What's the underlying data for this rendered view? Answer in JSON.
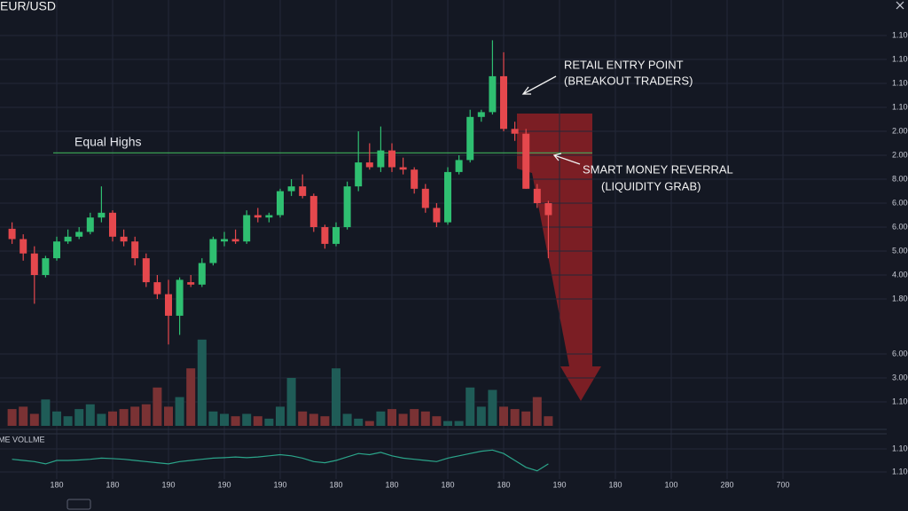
{
  "chart_data": {
    "type": "candlestick",
    "title": "EUR/USD",
    "x": [
      1,
      2,
      3,
      4,
      5,
      6,
      7,
      8,
      9,
      10,
      11,
      12,
      13,
      14,
      15,
      16,
      17,
      18,
      19,
      20,
      21,
      22,
      23,
      24,
      25,
      26,
      27,
      28,
      29,
      30,
      31,
      32,
      33,
      34,
      35,
      36,
      37,
      38,
      39,
      40,
      41,
      42,
      43,
      44,
      45,
      46,
      47,
      48,
      49
    ],
    "open": [
      3.93,
      3.5,
      2.9,
      2.0,
      2.7,
      3.4,
      3.6,
      3.8,
      4.4,
      4.6,
      3.6,
      3.4,
      2.7,
      1.7,
      1.2,
      0.3,
      1.7,
      1.6,
      2.5,
      3.4,
      3.5,
      3.4,
      4.5,
      4.4,
      4.5,
      5.5,
      5.7,
      5.3,
      4.0,
      3.3,
      4.0,
      5.7,
      6.7,
      6.5,
      7.2,
      6.5,
      6.4,
      5.6,
      4.8,
      4.2,
      6.3,
      6.8,
      8.6,
      8.8,
      10.3,
      8.1,
      7.9,
      5.6,
      5.0
    ],
    "high": [
      4.2,
      3.7,
      3.2,
      2.8,
      3.6,
      3.9,
      4.0,
      4.6,
      5.7,
      4.7,
      3.9,
      3.6,
      2.9,
      2.0,
      1.8,
      1.9,
      2.0,
      2.7,
      3.6,
      3.8,
      3.9,
      4.7,
      4.8,
      4.6,
      5.6,
      6.0,
      6.2,
      5.4,
      4.1,
      4.2,
      5.9,
      8.0,
      7.5,
      8.2,
      7.5,
      6.9,
      6.5,
      5.8,
      5.0,
      6.5,
      7.0,
      8.9,
      8.9,
      11.8,
      11.3,
      8.4,
      8.1,
      5.8,
      5.1
    ],
    "low": [
      3.3,
      2.6,
      0.8,
      1.9,
      2.6,
      3.3,
      3.5,
      3.7,
      4.2,
      3.4,
      3.2,
      2.4,
      1.5,
      1.0,
      -0.9,
      -0.5,
      1.5,
      1.5,
      2.4,
      3.2,
      3.3,
      3.3,
      4.2,
      4.2,
      4.4,
      5.3,
      5.2,
      3.8,
      3.1,
      3.2,
      3.9,
      5.5,
      6.4,
      6.3,
      6.3,
      6.2,
      5.4,
      4.6,
      4.0,
      4.1,
      6.2,
      6.7,
      8.4,
      8.7,
      8.0,
      7.6,
      5.6,
      4.8,
      2.7
    ],
    "close": [
      3.5,
      2.9,
      2.0,
      2.7,
      3.4,
      3.6,
      3.8,
      4.4,
      4.6,
      3.6,
      3.4,
      2.7,
      1.7,
      1.2,
      0.3,
      1.8,
      1.6,
      2.5,
      3.5,
      3.5,
      3.4,
      4.5,
      4.4,
      4.5,
      5.5,
      5.7,
      5.3,
      4.0,
      3.3,
      4.0,
      5.7,
      6.7,
      6.5,
      7.2,
      6.5,
      6.4,
      5.6,
      4.8,
      4.2,
      6.3,
      6.8,
      8.6,
      8.8,
      10.3,
      8.1,
      7.9,
      5.6,
      5.0,
      4.5
    ],
    "up_color": "#2fbf71",
    "down_color": "#e5484d",
    "xlim": [
      0,
      80
    ],
    "xticks": [
      {
        "value": 5,
        "label": "180"
      },
      {
        "value": 10,
        "label": "180"
      },
      {
        "value": 15,
        "label": "190"
      },
      {
        "value": 20,
        "label": "190"
      },
      {
        "value": 25,
        "label": "190"
      },
      {
        "value": 30,
        "label": "180"
      },
      {
        "value": 35,
        "label": "180"
      },
      {
        "value": 40,
        "label": "180"
      },
      {
        "value": 45,
        "label": "180"
      },
      {
        "value": 50,
        "label": "190"
      },
      {
        "value": 55,
        "label": "180"
      },
      {
        "value": 60,
        "label": "100"
      },
      {
        "value": 65,
        "label": "280"
      },
      {
        "value": 70,
        "label": "700"
      }
    ],
    "ylim": [
      -1,
      13
    ],
    "yticks": [
      {
        "value": 12,
        "label": "1.100"
      },
      {
        "value": 11,
        "label": "1.100"
      },
      {
        "value": 10,
        "label": "1.100"
      },
      {
        "value": 9,
        "label": "1.100"
      },
      {
        "value": 8,
        "label": "2.000"
      },
      {
        "value": 7,
        "label": "2.000"
      },
      {
        "value": 6,
        "label": "8.000"
      },
      {
        "value": 5,
        "label": "6.000"
      },
      {
        "value": 4,
        "label": "6.000"
      },
      {
        "value": 3,
        "label": "5.000"
      },
      {
        "value": 2,
        "label": "4.000"
      },
      {
        "value": 1,
        "label": "1.800"
      }
    ],
    "grid": true,
    "level": {
      "label": "Equal Highs",
      "value": 7.1,
      "color": "#3fae5a"
    },
    "annotations": [
      {
        "lines": [
          "RETAIL ENTRY POINT",
          "(BREAKOUT TRADERS)"
        ]
      },
      {
        "lines": [
          "SMART MONEY REVERRAL",
          "(LIQUIDITY GRAB)"
        ]
      }
    ],
    "volume": {
      "values": [
        0.7,
        0.8,
        0.5,
        1.1,
        0.6,
        0.4,
        0.7,
        0.9,
        0.5,
        0.6,
        0.7,
        0.8,
        0.9,
        1.6,
        0.8,
        1.2,
        2.4,
        3.6,
        0.6,
        0.5,
        0.4,
        0.5,
        0.4,
        0.3,
        0.8,
        2.0,
        0.6,
        0.5,
        0.4,
        2.4,
        0.5,
        0.3,
        0.2,
        0.6,
        0.7,
        0.5,
        0.7,
        0.6,
        0.4,
        0.2,
        0.2,
        1.6,
        0.8,
        1.5,
        0.8,
        0.7,
        0.6,
        1.2,
        0.4
      ],
      "up_color": "#1f5c57",
      "down_color": "#7a3234",
      "ylim": [
        0,
        4
      ],
      "yticks": [
        {
          "value": 3,
          "label": "6.000"
        },
        {
          "value": 2,
          "label": "3.000"
        },
        {
          "value": 1,
          "label": "1.100"
        }
      ]
    },
    "indicator": {
      "label": "ME VOLLME",
      "values": [
        1.05,
        1.0,
        0.95,
        0.85,
        1.0,
        1.0,
        1.02,
        1.05,
        1.1,
        1.08,
        1.05,
        1.0,
        0.95,
        0.9,
        0.85,
        0.95,
        1.0,
        1.05,
        1.1,
        1.12,
        1.15,
        1.12,
        1.15,
        1.2,
        1.25,
        1.2,
        1.1,
        0.95,
        0.9,
        1.0,
        1.15,
        1.3,
        1.25,
        1.35,
        1.2,
        1.1,
        1.05,
        1.0,
        0.95,
        1.1,
        1.2,
        1.3,
        1.4,
        1.45,
        1.3,
        1.0,
        0.7,
        0.55,
        0.85
      ],
      "color": "#2ba58a",
      "ylim": [
        0,
        2.1
      ],
      "yticks": [
        {
          "value": 1.5,
          "label": "1.100"
        },
        {
          "value": 0.5,
          "label": "1.100"
        }
      ]
    }
  }
}
